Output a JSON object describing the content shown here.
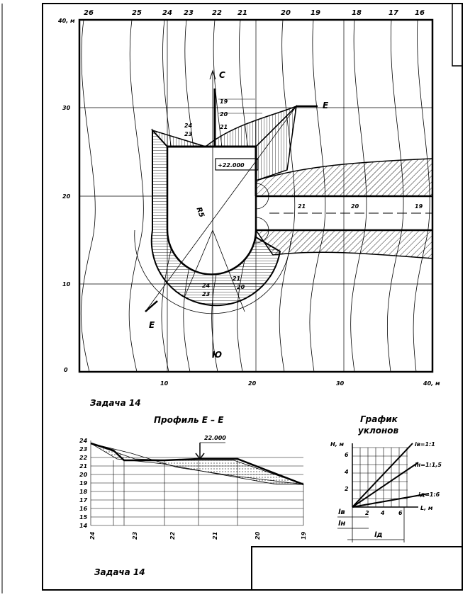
{
  "map": {
    "contour_labels": [
      "26",
      "25",
      "24",
      "23",
      "22",
      "21",
      "20",
      "19",
      "18",
      "17",
      "16"
    ],
    "y_labels": [
      "40, м",
      "30",
      "20",
      "10",
      "0"
    ],
    "x_labels": [
      "10",
      "20",
      "30",
      "40, м"
    ],
    "north": "С",
    "south": "Ю",
    "section_mark_top": "E",
    "section_mark_bottom": "E",
    "slope_top_labels": [
      "19",
      "20",
      "21"
    ],
    "corner_upper": "24",
    "corner_lower": "23",
    "platform_level": "+22.000",
    "radius": "R5",
    "road_labels": [
      "21",
      "20",
      "19"
    ],
    "bottom_upper": "24",
    "bottom_lower": "23",
    "bottom_21": "21",
    "bottom_20": "20"
  },
  "task_upper": "Задача  14",
  "profile": {
    "title": "Профиль  E – E",
    "level": "22.000",
    "y_labels": [
      "24",
      "23",
      "22",
      "21",
      "20",
      "19",
      "18",
      "17",
      "16",
      "15",
      "14"
    ],
    "x_labels": [
      "24",
      "23",
      "22",
      "21",
      "20",
      "19"
    ]
  },
  "slope_graph": {
    "title_line1": "График",
    "title_line2": "уклонов",
    "y_axis": "H, м",
    "y_labels": [
      "6",
      "4",
      "2"
    ],
    "x_axis": "L, м",
    "x_labels": [
      "2",
      "4",
      "6"
    ],
    "line_labels": [
      "iв=1:1",
      "iн=1:1,5",
      "iд=1:6"
    ],
    "dim_labels": [
      "lв",
      "lн",
      "lд"
    ]
  },
  "task_lower": "Задача  14"
}
